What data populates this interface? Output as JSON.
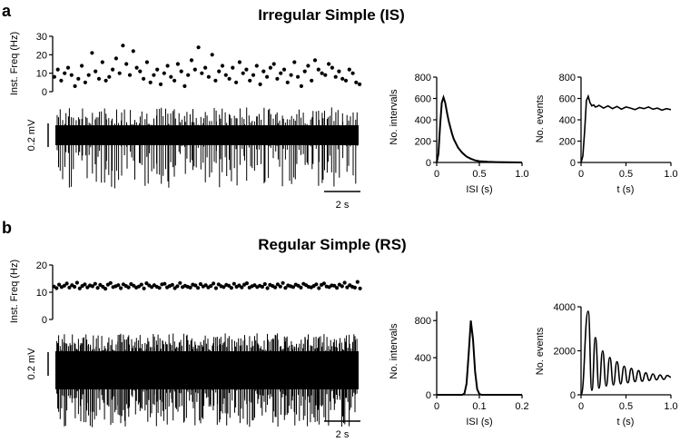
{
  "panels": [
    {
      "letter": "a",
      "title": "Irregular Simple (IS)",
      "scale_bar_voltage": "0.2 mV",
      "scale_bar_time": "2 s"
    },
    {
      "letter": "b",
      "title": "Regular Simple (RS)",
      "scale_bar_voltage": "0.2 mV",
      "scale_bar_time": "2 s"
    }
  ],
  "chart_data": [
    {
      "id": "is-inst-freq",
      "type": "scatter",
      "ylabel": "Inst. Freq (Hz)",
      "ylim": [
        0,
        30
      ],
      "yticks": [
        "0",
        "10",
        "20",
        "30"
      ],
      "spike_index": [
        1,
        2,
        3,
        4,
        5,
        6,
        7,
        8,
        9,
        10,
        11,
        12,
        13,
        14,
        15,
        16,
        17,
        18,
        19,
        20,
        21,
        22,
        23,
        24,
        25,
        26,
        27,
        28,
        29,
        30,
        31,
        32,
        33,
        34,
        35,
        36,
        37,
        38,
        39,
        40,
        41,
        42,
        43,
        44,
        45,
        46,
        47,
        48,
        49,
        50,
        51,
        52,
        53,
        54,
        55,
        56,
        57,
        58,
        59,
        60,
        61,
        62,
        63,
        64,
        65,
        66,
        67,
        68,
        69,
        70,
        71,
        72,
        73,
        74,
        75,
        76,
        77,
        78,
        79,
        80,
        81,
        82,
        83,
        84,
        85,
        86,
        87,
        88,
        89,
        90
      ],
      "values": [
        8,
        12,
        6,
        10,
        13,
        9,
        3,
        7,
        14,
        5,
        9,
        21,
        11,
        7,
        16,
        6,
        8,
        12,
        18,
        10,
        25,
        15,
        9,
        22,
        13,
        11,
        7,
        16,
        5,
        9,
        12,
        4,
        10,
        14,
        8,
        6,
        15,
        11,
        3,
        9,
        17,
        12,
        24,
        10,
        13,
        8,
        20,
        6,
        11,
        14,
        9,
        7,
        13,
        5,
        16,
        10,
        12,
        6,
        9,
        14,
        4,
        11,
        8,
        13,
        15,
        7,
        10,
        12,
        5,
        9,
        16,
        8,
        3,
        11,
        14,
        6,
        17,
        12,
        10,
        9,
        15,
        13,
        8,
        11,
        7,
        6,
        12,
        10,
        5,
        4
      ]
    },
    {
      "id": "is-isi-histogram",
      "type": "line",
      "xlabel": "ISI (s)",
      "ylabel": "No. intervals",
      "xlim": [
        0,
        1.0
      ],
      "ylim": [
        0,
        800
      ],
      "xticks": [
        "0",
        "0.5",
        "1.0"
      ],
      "yticks": [
        "0",
        "200",
        "400",
        "600",
        "800"
      ],
      "x": [
        0.0,
        0.02,
        0.04,
        0.06,
        0.08,
        0.1,
        0.12,
        0.14,
        0.16,
        0.18,
        0.2,
        0.25,
        0.3,
        0.35,
        0.4,
        0.45,
        0.5,
        0.6,
        0.7,
        0.8,
        0.9,
        1.0
      ],
      "y": [
        0,
        80,
        350,
        560,
        610,
        560,
        470,
        390,
        330,
        270,
        220,
        140,
        90,
        55,
        35,
        20,
        12,
        6,
        3,
        2,
        1,
        0
      ]
    },
    {
      "id": "is-autocorrelogram",
      "type": "line",
      "xlabel": "t (s)",
      "ylabel": "No. events",
      "xlim": [
        0,
        1.0
      ],
      "ylim": [
        0,
        800
      ],
      "xticks": [
        "0",
        "0.5",
        "1.0"
      ],
      "yticks": [
        "0",
        "200",
        "400",
        "600",
        "800"
      ],
      "x": [
        0.0,
        0.02,
        0.04,
        0.06,
        0.08,
        0.1,
        0.12,
        0.14,
        0.16,
        0.18,
        0.2,
        0.25,
        0.3,
        0.35,
        0.4,
        0.45,
        0.5,
        0.55,
        0.6,
        0.65,
        0.7,
        0.75,
        0.8,
        0.85,
        0.9,
        0.95,
        1.0
      ],
      "y": [
        0,
        60,
        300,
        580,
        620,
        560,
        530,
        540,
        520,
        525,
        535,
        510,
        530,
        505,
        525,
        500,
        520,
        510,
        495,
        515,
        505,
        520,
        500,
        510,
        490,
        505,
        495
      ]
    },
    {
      "id": "rs-inst-freq",
      "type": "scatter",
      "ylabel": "Inst. Freq (Hz)",
      "ylim": [
        0,
        20
      ],
      "yticks": [
        "0",
        "10",
        "20"
      ],
      "spike_index": [
        1,
        2,
        3,
        4,
        5,
        6,
        7,
        8,
        9,
        10,
        11,
        12,
        13,
        14,
        15,
        16,
        17,
        18,
        19,
        20,
        21,
        22,
        23,
        24,
        25,
        26,
        27,
        28,
        29,
        30,
        31,
        32,
        33,
        34,
        35,
        36,
        37,
        38,
        39,
        40,
        41,
        42,
        43,
        44,
        45,
        46,
        47,
        48,
        49,
        50,
        51,
        52,
        53,
        54,
        55,
        56,
        57,
        58,
        59,
        60,
        61,
        62,
        63,
        64,
        65,
        66,
        67,
        68,
        69,
        70,
        71,
        72,
        73,
        74,
        75,
        76,
        77,
        78,
        79,
        80,
        81,
        82,
        83,
        84,
        85,
        86,
        87,
        88,
        89,
        90,
        91,
        92,
        93,
        94,
        95,
        96,
        97,
        98,
        99,
        100,
        101,
        102,
        103,
        104,
        105,
        106,
        107,
        108,
        109,
        110,
        111,
        112,
        113,
        114,
        115,
        116,
        117,
        118,
        119,
        120
      ],
      "values": [
        12.1,
        11.5,
        12.8,
        11.9,
        12.4,
        13.2,
        11.7,
        12.6,
        12.0,
        13.5,
        11.4,
        12.3,
        12.9,
        11.8,
        12.5,
        12.2,
        13.1,
        11.6,
        12.7,
        12.0,
        11.3,
        12.8,
        13.4,
        11.9,
        12.2,
        12.6,
        11.5,
        12.9,
        12.3,
        11.8,
        13.0,
        12.4,
        11.7,
        12.1,
        12.8,
        11.4,
        13.3,
        12.5,
        11.9,
        12.6,
        12.0,
        11.6,
        12.9,
        13.1,
        11.8,
        12.3,
        12.7,
        11.5,
        12.2,
        13.4,
        11.9,
        12.4,
        12.0,
        11.7,
        12.8,
        12.5,
        11.6,
        13.0,
        12.1,
        12.6,
        11.8,
        12.3,
        13.2,
        11.5,
        12.9,
        12.2,
        11.9,
        12.7,
        12.4,
        11.6,
        13.1,
        12.0,
        12.5,
        11.8,
        12.8,
        13.3,
        11.7,
        12.2,
        12.6,
        11.9,
        12.4,
        12.0,
        13.0,
        11.5,
        12.7,
        12.3,
        11.8,
        12.9,
        12.1,
        13.4,
        11.6,
        12.5,
        12.2,
        11.9,
        12.8,
        12.4,
        11.7,
        13.1,
        12.6,
        12.0,
        11.8,
        12.3,
        12.9,
        11.5,
        12.7,
        13.2,
        12.1,
        11.9,
        12.5,
        12.4,
        11.6,
        12.8,
        12.2,
        13.5,
        11.8,
        12.6,
        12.0,
        11.7,
        13.8,
        11.4
      ]
    },
    {
      "id": "rs-isi-histogram",
      "type": "line",
      "xlabel": "ISI (s)",
      "ylabel": "No. intervals",
      "xlim": [
        0,
        0.2
      ],
      "ylim": [
        0,
        900
      ],
      "xticks": [
        "0",
        "0.1",
        "0.2"
      ],
      "yticks": [
        "0",
        "400",
        "800"
      ],
      "x": [
        0.0,
        0.06,
        0.065,
        0.07,
        0.075,
        0.08,
        0.085,
        0.09,
        0.095,
        0.1,
        0.105,
        0.11,
        0.2
      ],
      "y": [
        0,
        0,
        15,
        120,
        450,
        800,
        600,
        250,
        60,
        10,
        0,
        0,
        0
      ]
    },
    {
      "id": "rs-autocorrelogram",
      "type": "line",
      "xlabel": "t (s)",
      "ylabel": "No. events",
      "xlim": [
        0,
        1.0
      ],
      "ylim": [
        0,
        4000
      ],
      "xticks": [
        "0",
        "0.5",
        "1.0"
      ],
      "yticks": [
        "0",
        "2000",
        "4000"
      ],
      "oscillation": {
        "period_s": 0.08,
        "baseline": 800,
        "peak_times_s": [
          0.08,
          0.16,
          0.24,
          0.32,
          0.4,
          0.48,
          0.56,
          0.64,
          0.72,
          0.8,
          0.88,
          0.96
        ],
        "peak_values": [
          3800,
          2600,
          2000,
          1700,
          1500,
          1300,
          1200,
          1100,
          1000,
          950,
          900,
          880
        ],
        "trough_values": [
          0,
          200,
          300,
          400,
          450,
          500,
          550,
          600,
          620,
          650,
          680,
          700
        ]
      }
    }
  ]
}
